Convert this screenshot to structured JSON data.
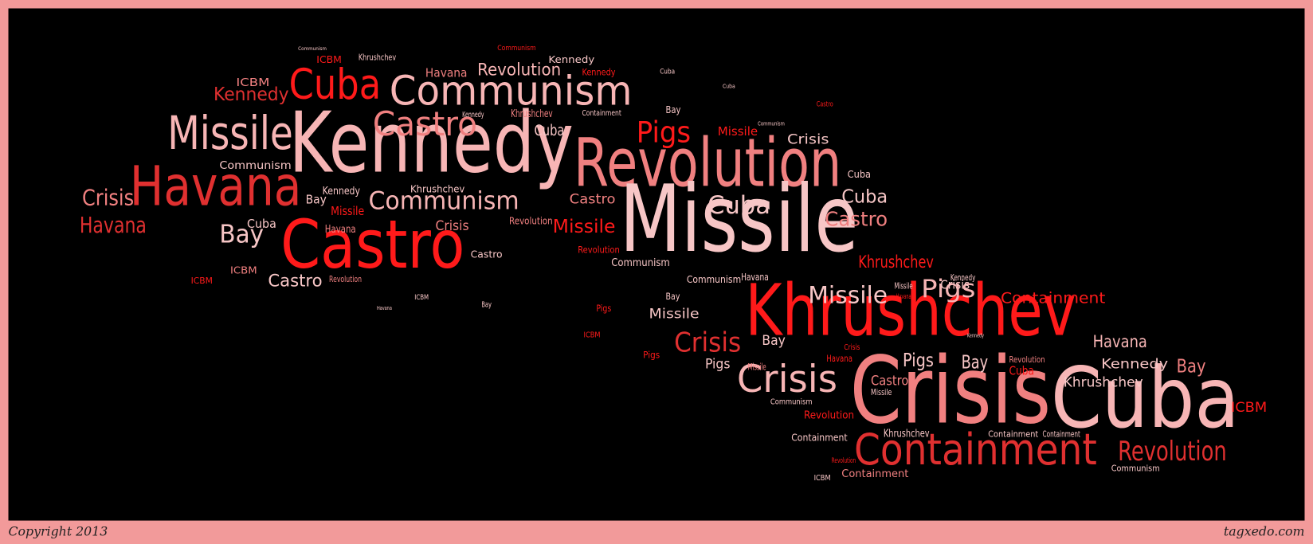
{
  "word_cloud": {
    "words": [
      "Kennedy",
      "Revolution",
      "Missile",
      "Khrushchev",
      "Crisis",
      "Cuba",
      "Containment",
      "Castro",
      "Havana",
      "Missile",
      "Communism",
      "Cuba",
      "Castro",
      "Communism",
      "Crisis",
      "Revolution",
      "Crisis",
      "Pigs",
      "Bay",
      "Crisis",
      "Havana",
      "Kennedy",
      "Missile",
      "Pigs",
      "Containment",
      "Havana",
      "Kennedy",
      "Bay",
      "ICBM",
      "Khrushchev",
      "Khrushchev",
      "Castro",
      "Cuba",
      "Cuba",
      "Revolution",
      "Havana",
      "Kennedy",
      "Kennedy",
      "Khrushchev",
      "ICBM",
      "ICBM",
      "Castro",
      "Castro",
      "Missile",
      "Crisis",
      "Cuba",
      "Kennedy",
      "Missile",
      "Havana",
      "Khrushchev",
      "Communism",
      "Revolution",
      "Castro",
      "Bay",
      "Revolution",
      "ICBM",
      "ICBM",
      "Cuba",
      "Khrushchev",
      "Containment",
      "Bay",
      "Missile",
      "Crisis",
      "Communism",
      "Havana",
      "Communism",
      "Revolution",
      "Bay",
      "Missile",
      "Bay",
      "Pigs",
      "Missile",
      "Pigs",
      "Pigs",
      "ICBM",
      "Pigs",
      "Bay",
      "Cuba",
      "Revolution",
      "Castro",
      "Missile",
      "Communism",
      "Revolution",
      "Containment",
      "Khrushchev",
      "Containment",
      "Containment",
      "Containment",
      "ICBM",
      "Revolution",
      "Communism",
      "Bay",
      "ICBM",
      "Havana",
      "Cuba",
      "Cuba",
      "Communism",
      "Communism",
      "Kennedy",
      "Castro",
      "Communism",
      "Cuba",
      "Kennedy",
      "Crisis",
      "Missile",
      "Havana",
      "Kennedy",
      "Crisis",
      "Havana"
    ]
  },
  "footer": {
    "copyright": "Copyright 2013",
    "site": "tagxedo.com"
  }
}
